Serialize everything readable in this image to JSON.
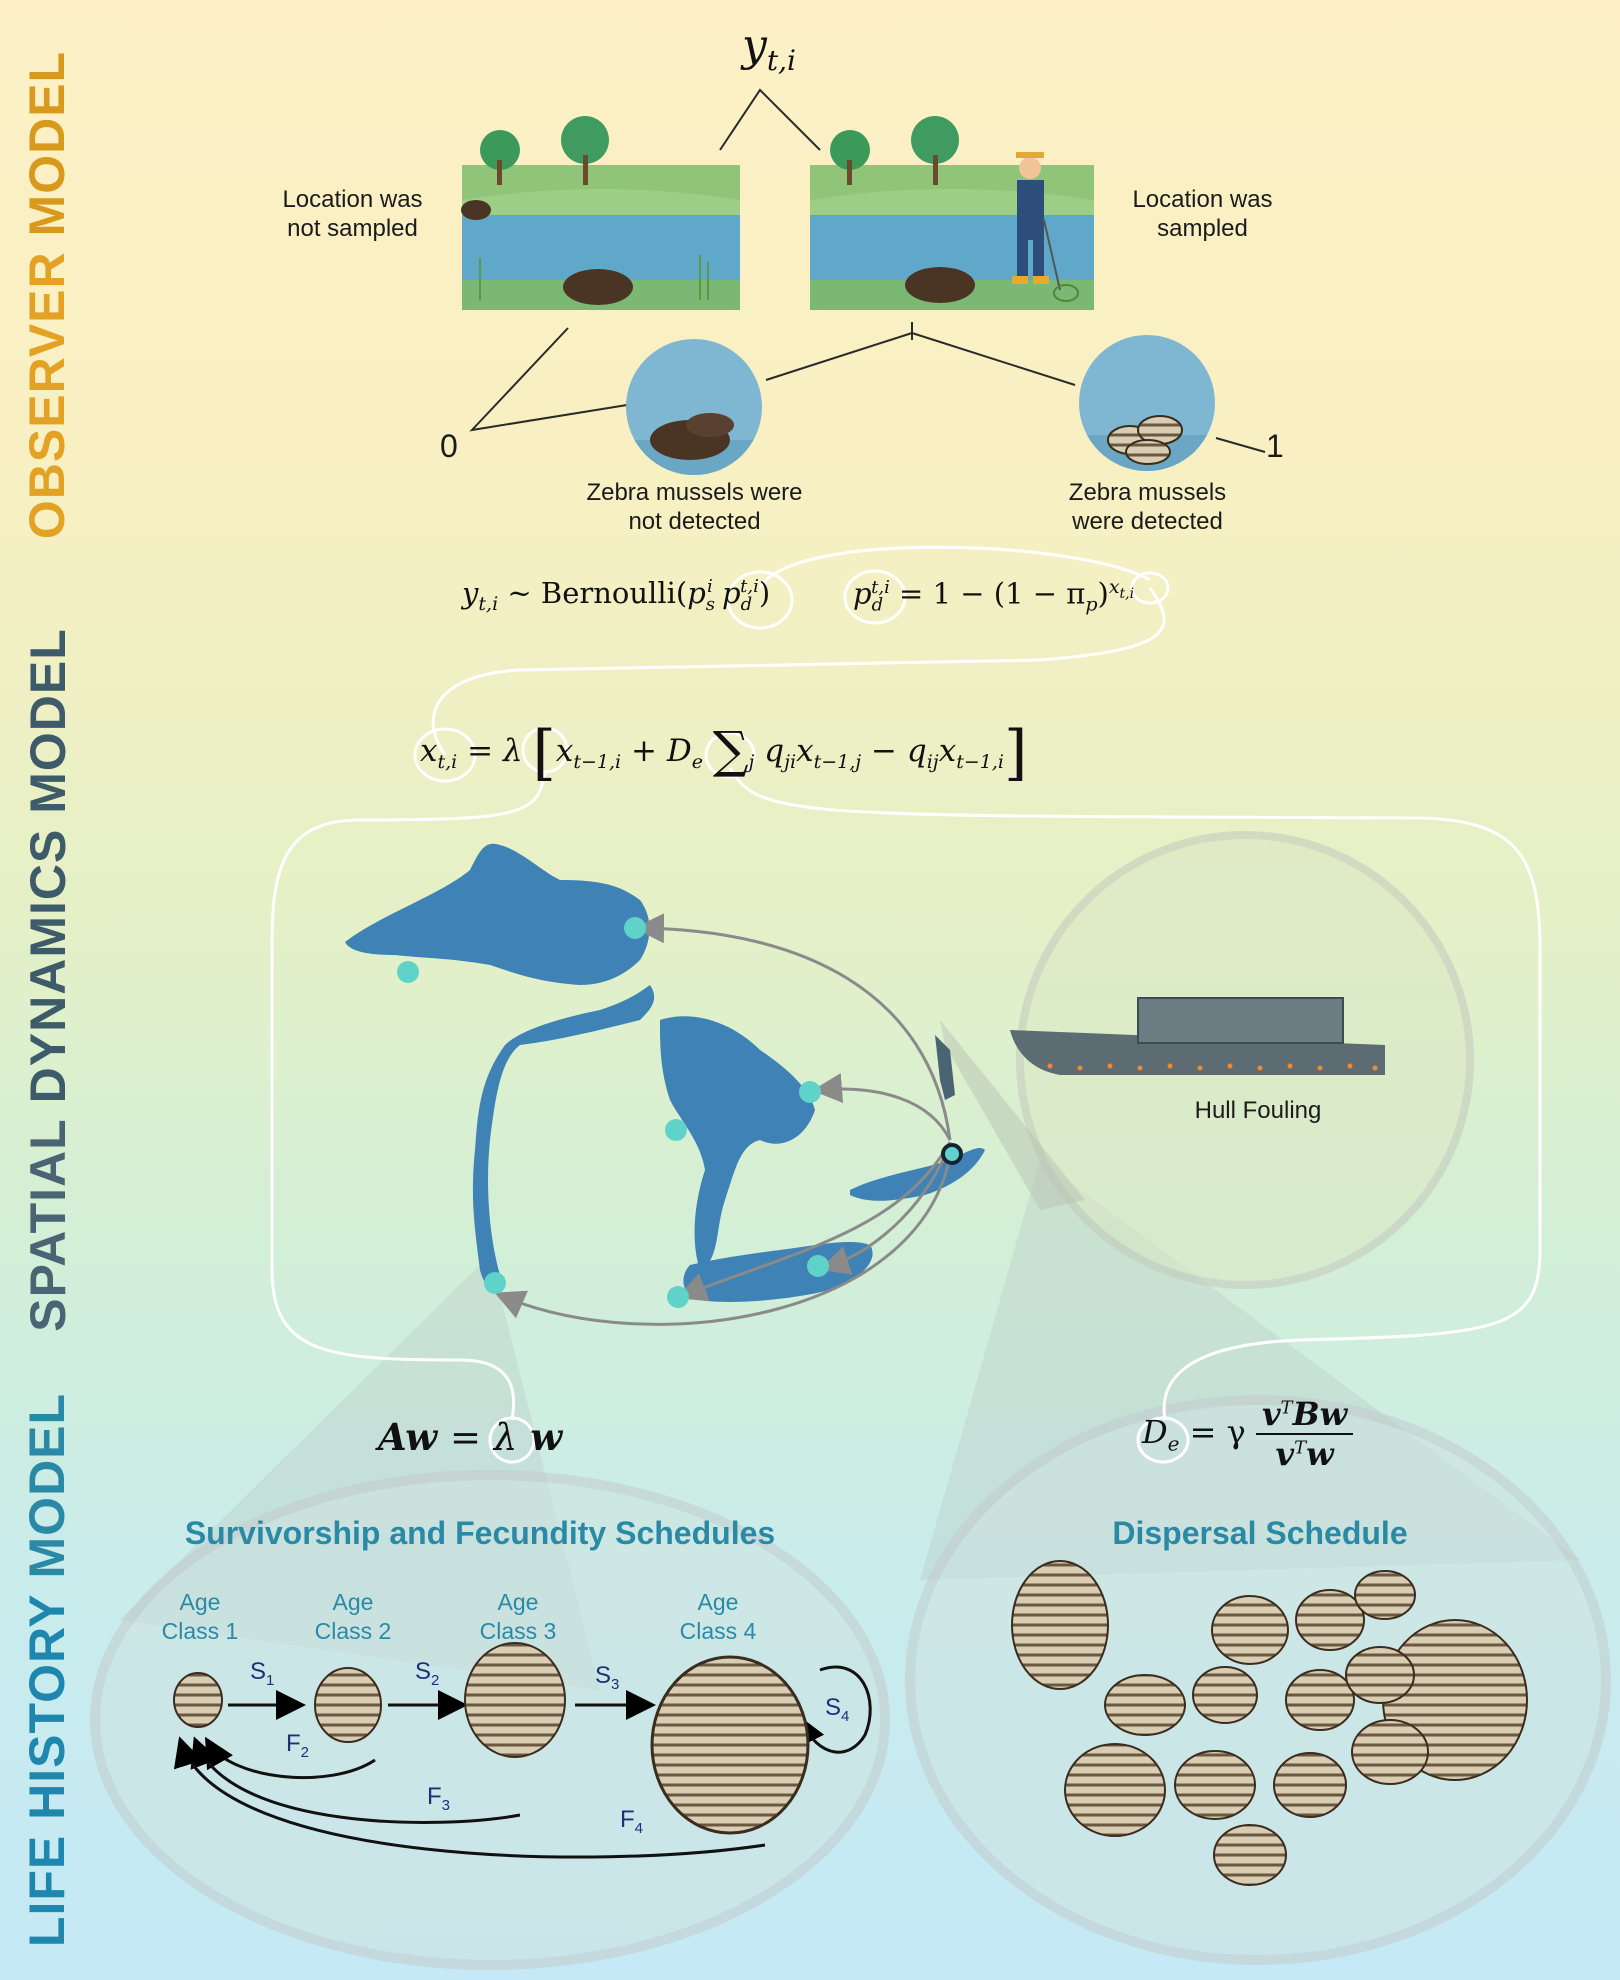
{
  "sections": {
    "observer": {
      "label_a": "OBSERVER",
      "label_b": "MODEL",
      "color_a": "#e3a224",
      "color_b": "#d89a1c"
    },
    "spatial": {
      "label_a": "SPATIAL",
      "label_b": "DYNAMICS MODEL",
      "color_a": "#4a6473",
      "color_b": "#3e5b69"
    },
    "life": {
      "label_a": "LIFE HISTORY",
      "label_b": "MODEL",
      "color_a": "#1f86ad",
      "color_b": "#2a8aa6"
    }
  },
  "observer": {
    "top_symbol": "y",
    "top_sub": "t,i",
    "not_sampled": "Location was not sampled",
    "sampled": "Location was sampled",
    "not_detected": "Zebra mussels were not detected",
    "detected": "Zebra mussels were detected",
    "zero": "0",
    "one": "1"
  },
  "equations": {
    "bernoulli": {
      "lhs": "y",
      "lhs_sub": "t,i",
      "tilde": "~",
      "fn": "Bernoulli"
    },
    "detection": {
      "rhs": "= 1 − (1 − π",
      "pi_sub": "p",
      "exp": "x",
      "exp_sub": "t,i"
    },
    "dynamics": {
      "x": "x",
      "x_sub": "t,i",
      "eq": "=",
      "lambda": "λ",
      "term1_sub": "t−1,i",
      "plus": "+",
      "De": "D",
      "De_sub": "e",
      "sum_sub": "j",
      "q1_sub": "ji",
      "x2_sub": "t−1,j",
      "minus": "−",
      "q2_sub": "ij",
      "x3_sub": "t−1,i"
    },
    "eigen": {
      "lhs": "Aw",
      "eq": "=",
      "lambda": "λ",
      "rhs": "w"
    },
    "dispersal": {
      "lhs": "D",
      "lhs_sub": "e",
      "eq": "= γ",
      "num": "Bw",
      "den": "w",
      "vsym": "v",
      "sup": "T"
    }
  },
  "hull": {
    "label": "Hull Fouling"
  },
  "life": {
    "survivorship_title": "Survivorship and Fecundity Schedules",
    "dispersal_title": "Dispersal Schedule",
    "age_word": "Age",
    "classes": [
      "Class 1",
      "Class 2",
      "Class 3",
      "Class 4"
    ],
    "survival": [
      "S",
      "S",
      "S",
      "S"
    ],
    "survival_sub": [
      "1",
      "2",
      "3",
      "4"
    ],
    "fecundity": [
      "F",
      "F",
      "F"
    ],
    "fecundity_sub": [
      "2",
      "3",
      "4"
    ]
  }
}
